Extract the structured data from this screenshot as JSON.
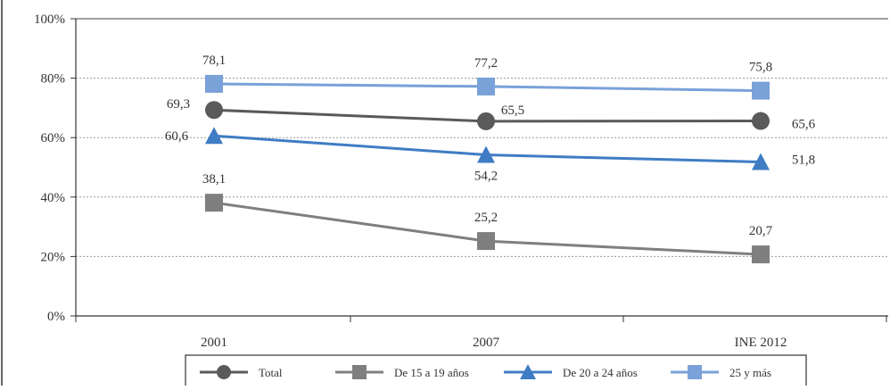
{
  "chart_data": {
    "type": "line",
    "categories": [
      "2001",
      "2007",
      "INE 2012"
    ],
    "y_ticks": [
      "0%",
      "20%",
      "40%",
      "60%",
      "80%",
      "100%"
    ],
    "ylim": [
      0,
      100
    ],
    "grid": "horizontal dotted",
    "legend_placement": "bottom",
    "series": [
      {
        "name": "Total",
        "values": [
          69.3,
          65.5,
          65.6
        ],
        "labels": [
          "69,3",
          "65,5",
          "65,6"
        ],
        "color": "#5a5a5a",
        "marker": "circle"
      },
      {
        "name": "De 15 a 19 años",
        "values": [
          38.1,
          25.2,
          20.7
        ],
        "labels": [
          "38,1",
          "25,2",
          "20,7"
        ],
        "color": "#7f7f7f",
        "marker": "square"
      },
      {
        "name": "De 20 a 24 años",
        "values": [
          60.6,
          54.2,
          51.8
        ],
        "labels": [
          "60,6",
          "54,2",
          "51,8"
        ],
        "color": "#3f7cc4",
        "marker": "triangle"
      },
      {
        "name": "25 y más",
        "values": [
          78.1,
          77.2,
          75.8
        ],
        "labels": [
          "78,1",
          "77,2",
          "75,8"
        ],
        "color": "#7aa1d8",
        "marker": "square"
      }
    ]
  }
}
